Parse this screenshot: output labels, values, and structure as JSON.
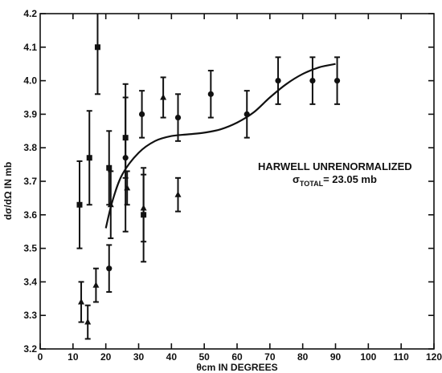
{
  "chart_data": {
    "type": "scatter",
    "xlabel": "θcm IN DEGREES",
    "ylabel": "dσ/dΩ IN mb",
    "xlim": [
      0,
      120
    ],
    "ylim": [
      3.2,
      4.2
    ],
    "xticks": [
      0,
      10,
      20,
      30,
      40,
      50,
      60,
      70,
      80,
      90,
      100,
      110,
      120
    ],
    "yticks": [
      3.2,
      3.3,
      3.4,
      3.5,
      3.6,
      3.7,
      3.8,
      3.9,
      4.0,
      4.1,
      4.2
    ],
    "grid": false,
    "annotation": {
      "line1": "HARWELL UNRENORMALIZED",
      "sigma": "σ",
      "subscript": "TOTAL",
      "value": "= 23.05 mb"
    },
    "series": [
      {
        "marker": "square",
        "points": [
          {
            "x": 12,
            "y": 3.63,
            "err": 0.13
          },
          {
            "x": 15,
            "y": 3.77,
            "err": 0.14
          },
          {
            "x": 17.5,
            "y": 4.1,
            "err": 0.14
          },
          {
            "x": 21,
            "y": 3.74,
            "err": 0.11
          },
          {
            "x": 26,
            "y": 3.83,
            "err": 0.12
          },
          {
            "x": 31.5,
            "y": 3.6,
            "err": 0.14
          }
        ]
      },
      {
        "marker": "circle",
        "points": [
          {
            "x": 21,
            "y": 3.44,
            "err": 0.07
          },
          {
            "x": 26,
            "y": 3.77,
            "err": 0.22
          },
          {
            "x": 31,
            "y": 3.9,
            "err": 0.07
          },
          {
            "x": 42,
            "y": 3.89,
            "err": 0.07
          },
          {
            "x": 52,
            "y": 3.96,
            "err": 0.07
          },
          {
            "x": 63,
            "y": 3.9,
            "err": 0.07
          },
          {
            "x": 72.5,
            "y": 4.0,
            "err": 0.07
          },
          {
            "x": 83,
            "y": 4.0,
            "err": 0.07
          },
          {
            "x": 90.5,
            "y": 4.0,
            "err": 0.07
          }
        ]
      },
      {
        "marker": "triangle",
        "points": [
          {
            "x": 12.5,
            "y": 3.34,
            "err": 0.06
          },
          {
            "x": 14.5,
            "y": 3.28,
            "err": 0.05
          },
          {
            "x": 17,
            "y": 3.39,
            "err": 0.05
          },
          {
            "x": 21.5,
            "y": 3.63,
            "err": 0.1
          },
          {
            "x": 26.5,
            "y": 3.68,
            "err": 0.05
          },
          {
            "x": 31.5,
            "y": 3.62,
            "err": 0.1
          },
          {
            "x": 37.5,
            "y": 3.95,
            "err": 0.06
          },
          {
            "x": 42,
            "y": 3.66,
            "err": 0.05
          }
        ]
      }
    ],
    "curve": [
      {
        "x": 20,
        "y": 3.56
      },
      {
        "x": 22,
        "y": 3.64
      },
      {
        "x": 25,
        "y": 3.72
      },
      {
        "x": 30,
        "y": 3.785
      },
      {
        "x": 35,
        "y": 3.82
      },
      {
        "x": 40,
        "y": 3.835
      },
      {
        "x": 45,
        "y": 3.84
      },
      {
        "x": 50,
        "y": 3.845
      },
      {
        "x": 55,
        "y": 3.855
      },
      {
        "x": 60,
        "y": 3.875
      },
      {
        "x": 65,
        "y": 3.905
      },
      {
        "x": 70,
        "y": 3.95
      },
      {
        "x": 75,
        "y": 3.99
      },
      {
        "x": 80,
        "y": 4.02
      },
      {
        "x": 85,
        "y": 4.04
      },
      {
        "x": 90,
        "y": 4.05
      }
    ]
  }
}
